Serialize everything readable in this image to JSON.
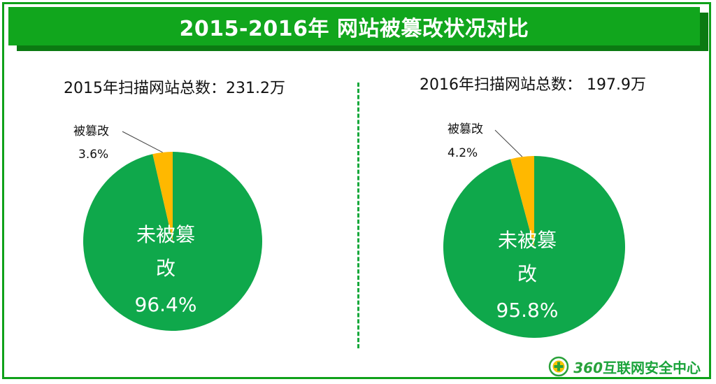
{
  "banner": {
    "title": "2015-2016年 网站被篡改状况对比"
  },
  "colors": {
    "accent": "#11a61d",
    "unaffected": "#0fa84b",
    "tampered": "#ffb800"
  },
  "chart_data": [
    {
      "type": "pie",
      "title": "2015年扫描网站总数：231.2万",
      "slices": [
        {
          "label": "被篡改",
          "value": 3.6,
          "value_text": "3.6%",
          "color": "#ffb800"
        },
        {
          "label": "未被篡改",
          "value": 96.4,
          "value_text": "96.4%",
          "color": "#0fa84b"
        }
      ]
    },
    {
      "type": "pie",
      "title": "2016年扫描网站总数： 197.9万",
      "slices": [
        {
          "label": "被篡改",
          "value": 4.2,
          "value_text": "4.2%",
          "color": "#ffb800"
        },
        {
          "label": "未被篡改",
          "value": 95.8,
          "value_text": "95.8%",
          "color": "#0fa84b"
        }
      ]
    }
  ],
  "logo": {
    "number": "360",
    "text": "互联网安全中心"
  }
}
